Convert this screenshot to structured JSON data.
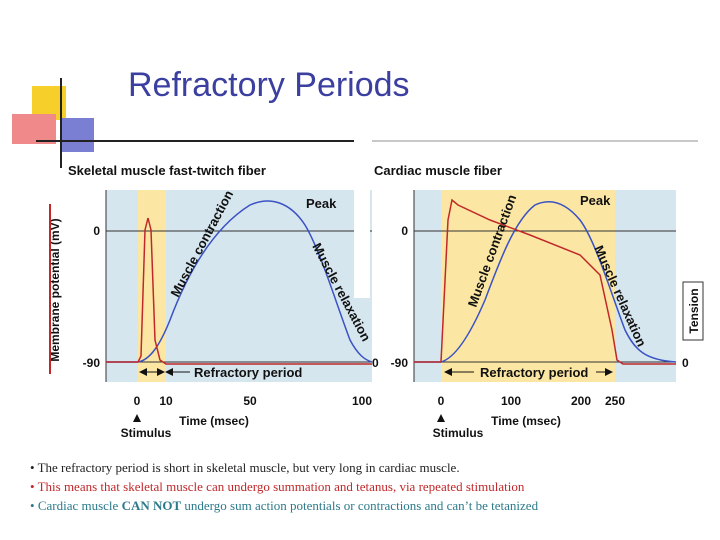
{
  "slide": {
    "title": "Refractory Periods",
    "colors": {
      "title": "#3b3fa0",
      "panel_bg": "#d6e6ef",
      "refractory": "#fbe7a3",
      "membrane": "#c0282a",
      "tension": "#3a52c4",
      "deco_yellow": "#f6cf2b",
      "deco_red": "#f08a8a",
      "deco_blue": "#7b7fd4"
    }
  },
  "skeletal": {
    "heading": "Skeletal muscle fast-twitch fiber",
    "ylabel": "Membrane potential (mV)",
    "y_ticks": [
      "0",
      "-90"
    ],
    "x_ticks": [
      "0",
      "10",
      "50",
      "100"
    ],
    "xlabel": "Time (msec)",
    "stimulus": "Stimulus",
    "peak": "Peak",
    "contraction": "Muscle contraction",
    "relaxation": "Muscle relaxation",
    "refractory": "Refractory period",
    "right_tick": "0"
  },
  "cardiac": {
    "heading": "Cardiac muscle fiber",
    "y_ticks": [
      "0",
      "-90"
    ],
    "x_ticks": [
      "0",
      "100",
      "200",
      "250"
    ],
    "xlabel": "Time (msec)",
    "stimulus": "Stimulus",
    "peak": "Peak",
    "contraction": "Muscle contraction",
    "relaxation": "Muscle relaxation",
    "refractory": "Refractory period",
    "tension_label": "Tension",
    "right_tick": "0"
  },
  "bullets": [
    "The refractory period is short in skeletal muscle, but very long in cardiac muscle.",
    "This means that skeletal muscle can undergo summation and tetanus, via repeated stimulation"
  ],
  "bullet3": {
    "pre": "Cardiac muscle ",
    "bold": "CAN NOT",
    "post": " undergo sum action potentials or contractions and can’t be tetanized"
  }
}
